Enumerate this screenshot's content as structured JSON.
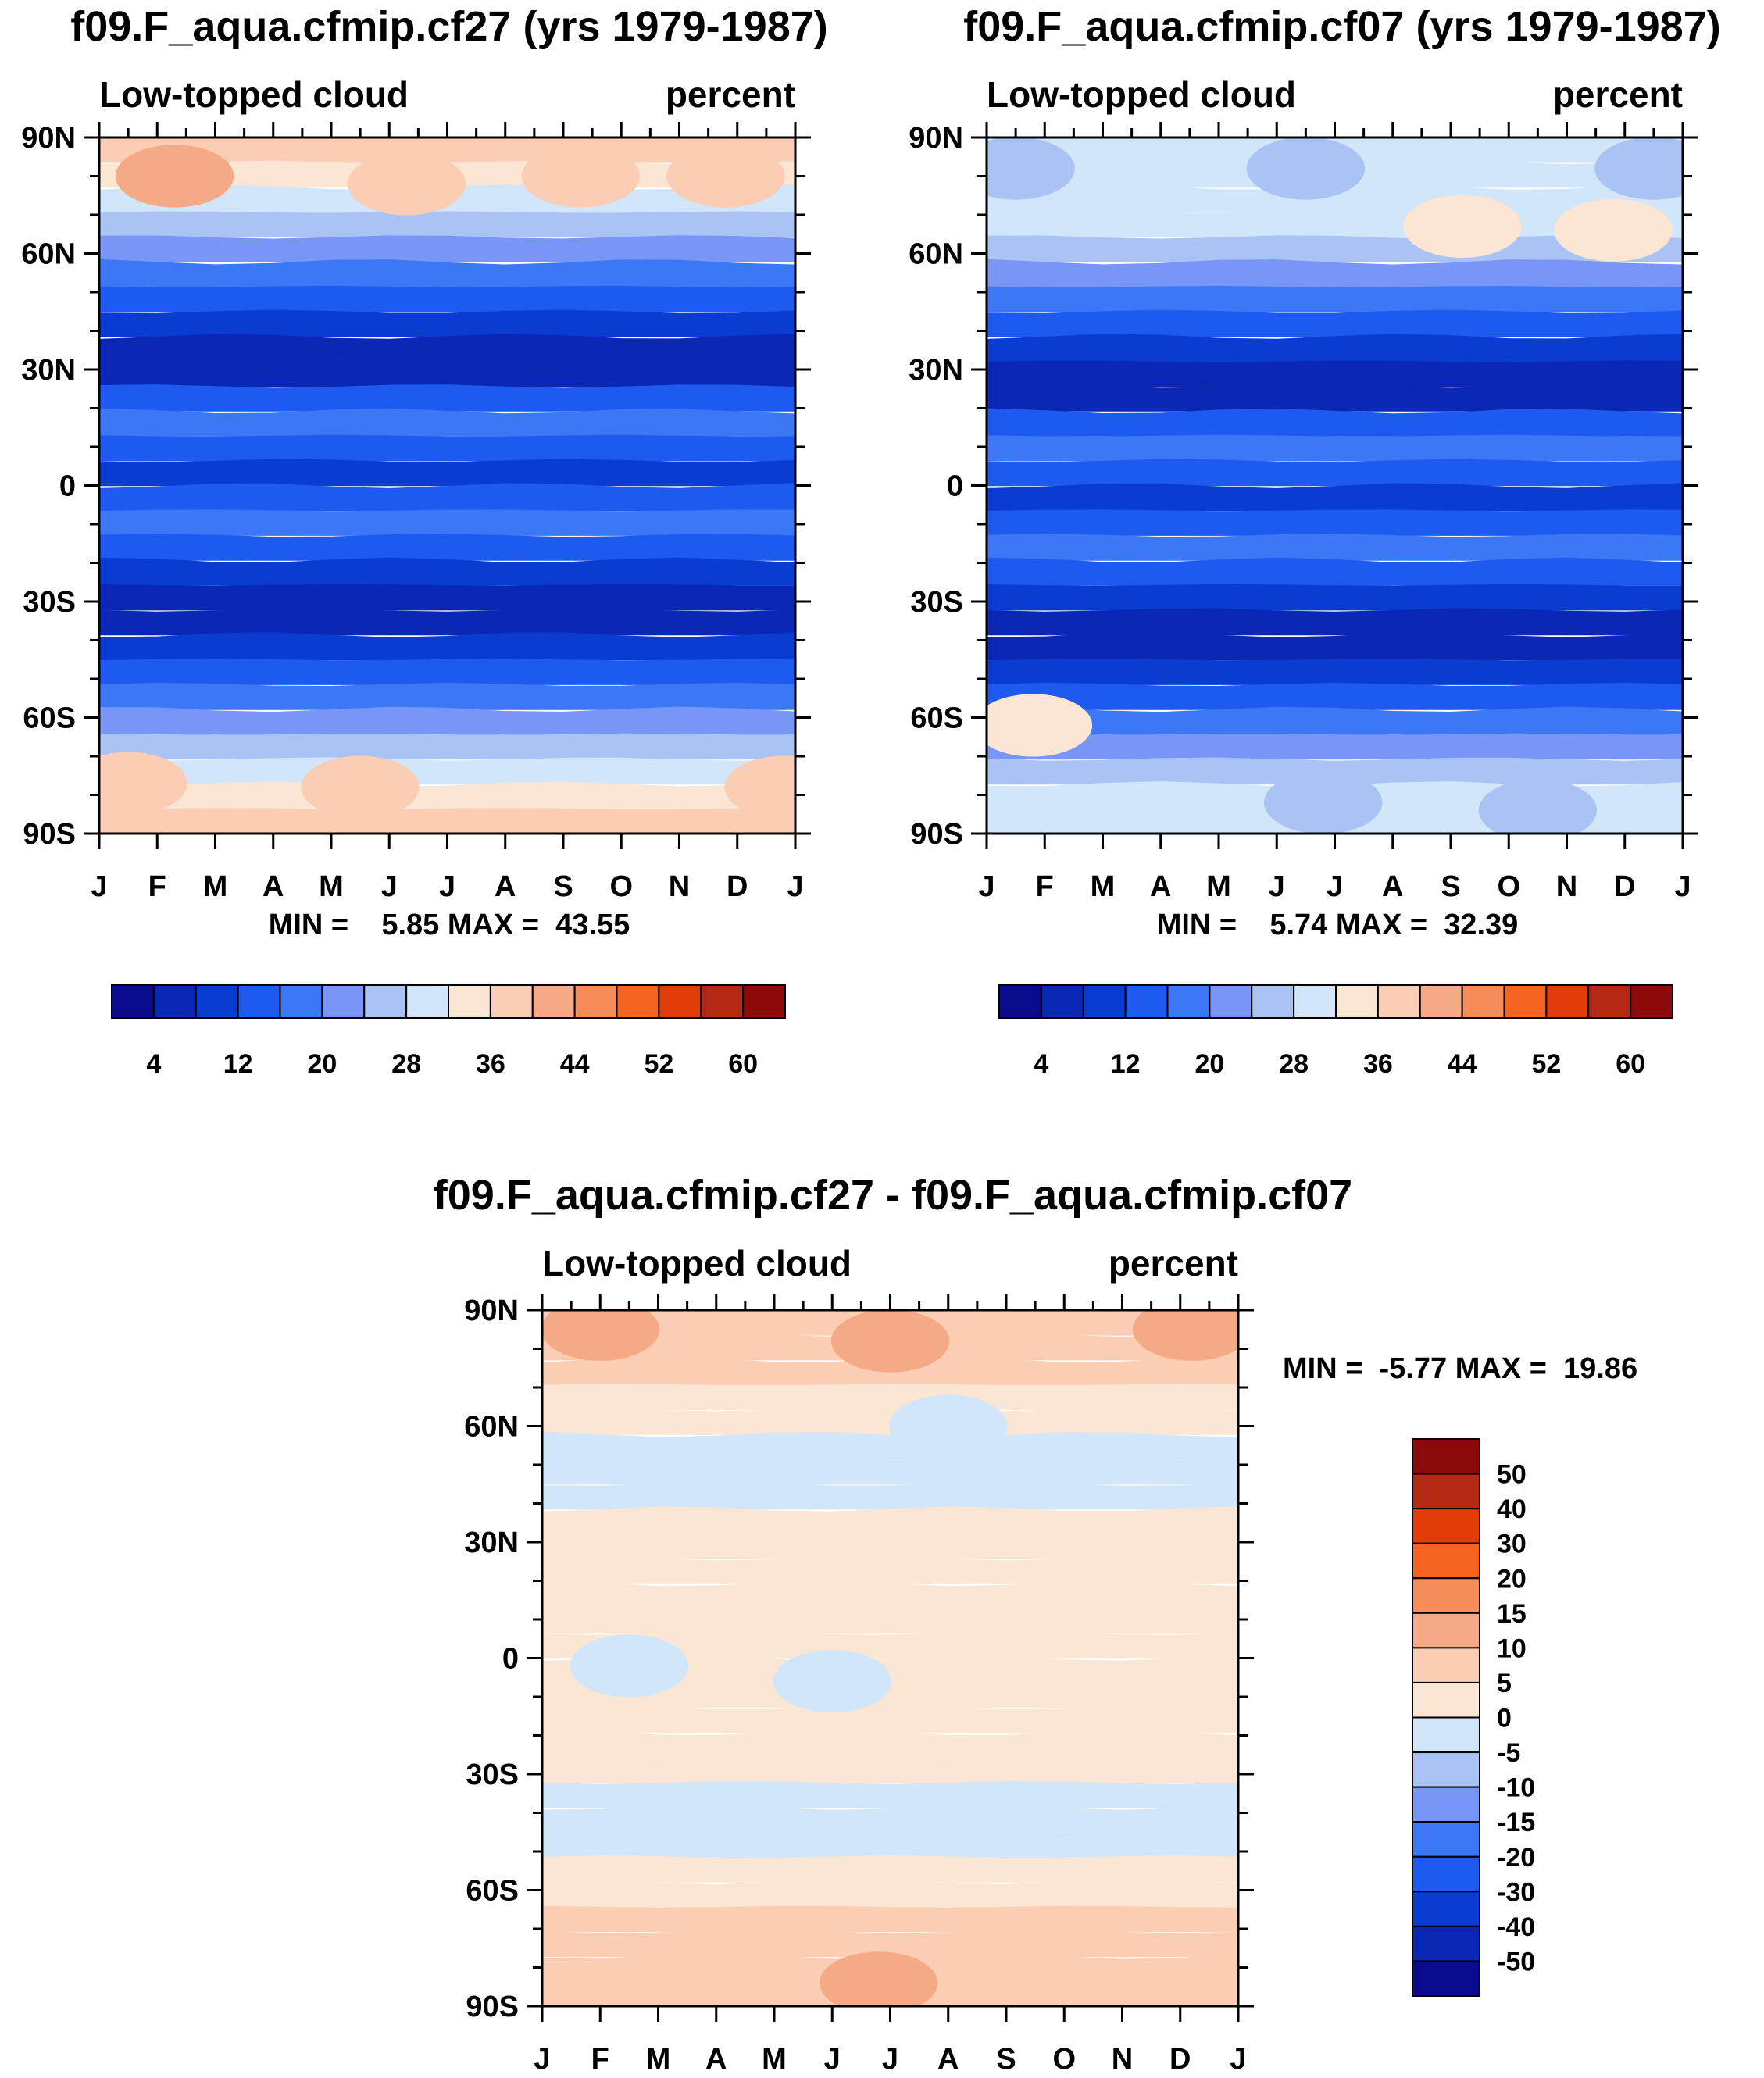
{
  "chart_data": [
    {
      "type": "heatmap",
      "title": "f09.F_aqua.cfmip.cf27 (yrs 1979-1987)",
      "left_label": "Low-topped cloud",
      "right_label": "percent",
      "x_ticks": [
        "J",
        "F",
        "M",
        "A",
        "M",
        "J",
        "J",
        "A",
        "S",
        "O",
        "N",
        "D",
        "J"
      ],
      "y_ticks": [
        "90N",
        "60N",
        "30N",
        "0",
        "30S",
        "60S",
        "90S"
      ],
      "ylim": [
        -90,
        90
      ],
      "min_max": "MIN =    5.85 MAX =  43.55",
      "min": 5.85,
      "max": 43.55,
      "colorbar_labels": [
        "4",
        "12",
        "20",
        "28",
        "36",
        "44",
        "52",
        "60"
      ],
      "colorbar_colors": [
        "#0a0a8c",
        "#0a28b4",
        "#0a3cd2",
        "#1e5af0",
        "#3c78f5",
        "#7896f5",
        "#aac3f5",
        "#d2e6fa",
        "#fae6d2",
        "#facdb4",
        "#f5aa87",
        "#f58c5a",
        "#f5641e",
        "#e13c0a",
        "#b42814",
        "#8c0a0a"
      ],
      "band_values": [
        36,
        33,
        28,
        24,
        20,
        16,
        12,
        8,
        4,
        6,
        14,
        18,
        14,
        10,
        13,
        18,
        14,
        10,
        6,
        4,
        8,
        12,
        16,
        20,
        24,
        28,
        33,
        36
      ],
      "patches": [
        {
          "v": 40,
          "lat": 80,
          "mon": 1.3
        },
        {
          "v": 38,
          "lat": 78,
          "mon": 5.3
        },
        {
          "v": 38,
          "lat": 80,
          "mon": 8.3
        },
        {
          "v": 38,
          "lat": 80,
          "mon": 10.8
        },
        {
          "v": 38,
          "lat": -77,
          "mon": 0.5
        },
        {
          "v": 38,
          "lat": -78,
          "mon": 4.5
        },
        {
          "v": 38,
          "lat": -78,
          "mon": 11.8
        }
      ]
    },
    {
      "type": "heatmap",
      "title": "f09.F_aqua.cfmip.cf07 (yrs 1979-1987)",
      "left_label": "Low-topped cloud",
      "right_label": "percent",
      "x_ticks": [
        "J",
        "F",
        "M",
        "A",
        "M",
        "J",
        "J",
        "A",
        "S",
        "O",
        "N",
        "D",
        "J"
      ],
      "y_ticks": [
        "90N",
        "60N",
        "30N",
        "0",
        "30S",
        "60S",
        "90S"
      ],
      "ylim": [
        -90,
        90
      ],
      "min_max": "MIN =    5.74 MAX =  32.39",
      "min": 5.74,
      "max": 32.39,
      "colorbar_labels": [
        "4",
        "12",
        "20",
        "28",
        "36",
        "44",
        "52",
        "60"
      ],
      "colorbar_colors": [
        "#0a0a8c",
        "#0a28b4",
        "#0a3cd2",
        "#1e5af0",
        "#3c78f5",
        "#7896f5",
        "#aac3f5",
        "#d2e6fa",
        "#fae6d2",
        "#facdb4",
        "#f5aa87",
        "#f58c5a",
        "#f5641e",
        "#e13c0a",
        "#b42814",
        "#8c0a0a"
      ],
      "band_values": [
        30,
        30,
        30,
        28,
        24,
        20,
        16,
        12,
        8,
        4,
        6,
        14,
        18,
        14,
        10,
        13,
        18,
        14,
        10,
        6,
        4,
        8,
        12,
        16,
        20,
        24,
        30,
        30
      ],
      "patches": [
        {
          "v": 26,
          "lat": 82,
          "mon": 0.5
        },
        {
          "v": 26,
          "lat": 82,
          "mon": 5.5
        },
        {
          "v": 26,
          "lat": 82,
          "mon": 11.5
        },
        {
          "v": 26,
          "lat": -82,
          "mon": 5.8
        },
        {
          "v": 26,
          "lat": -84,
          "mon": 9.5
        },
        {
          "v": 33,
          "lat": 67,
          "mon": 8.2
        },
        {
          "v": 33,
          "lat": 66,
          "mon": 10.8
        },
        {
          "v": 33,
          "lat": -62,
          "mon": 0.8
        }
      ]
    },
    {
      "type": "heatmap",
      "title": "f09.F_aqua.cfmip.cf27 - f09.F_aqua.cfmip.cf07",
      "left_label": "Low-topped cloud",
      "right_label": "percent",
      "x_ticks": [
        "J",
        "F",
        "M",
        "A",
        "M",
        "J",
        "J",
        "A",
        "S",
        "O",
        "N",
        "D",
        "J"
      ],
      "y_ticks": [
        "90N",
        "60N",
        "30N",
        "0",
        "30S",
        "60S",
        "90S"
      ],
      "ylim": [
        -90,
        90
      ],
      "min_max": "MIN =  -5.77 MAX =  19.86",
      "min": -5.77,
      "max": 19.86,
      "colorbar_labels": [
        "50",
        "40",
        "30",
        "20",
        "15",
        "10",
        "5",
        "0",
        "-5",
        "-10",
        "-15",
        "-20",
        "-30",
        "-40",
        "-50"
      ],
      "colorbar_colors": [
        "#8c0a0a",
        "#b42814",
        "#e13c0a",
        "#f5641e",
        "#f58c5a",
        "#f5aa87",
        "#facdb4",
        "#fae6d2",
        "#d2e6fa",
        "#aac3f5",
        "#7896f5",
        "#3c78f5",
        "#1e5af0",
        "#0a3cd2",
        "#0a28b4",
        "#0a0a8c"
      ],
      "band_values": [
        8,
        8,
        6,
        2,
        2,
        -2,
        -2,
        -2,
        2,
        2,
        2,
        2,
        2,
        2,
        2,
        2,
        2,
        2,
        2,
        -2,
        -2,
        -2,
        2,
        2,
        6,
        6,
        8,
        8
      ],
      "patches": [
        {
          "v": 12,
          "lat": 85,
          "mon": 1.0
        },
        {
          "v": 12,
          "lat": 85,
          "mon": 11.2
        },
        {
          "v": 12,
          "lat": 82,
          "mon": 6.0
        },
        {
          "v": 12,
          "lat": -84,
          "mon": 5.8
        },
        {
          "v": -2,
          "lat": 60,
          "mon": 7.0
        },
        {
          "v": -2,
          "lat": -2,
          "mon": 1.5
        },
        {
          "v": -2,
          "lat": -6,
          "mon": 5.0
        }
      ]
    }
  ]
}
